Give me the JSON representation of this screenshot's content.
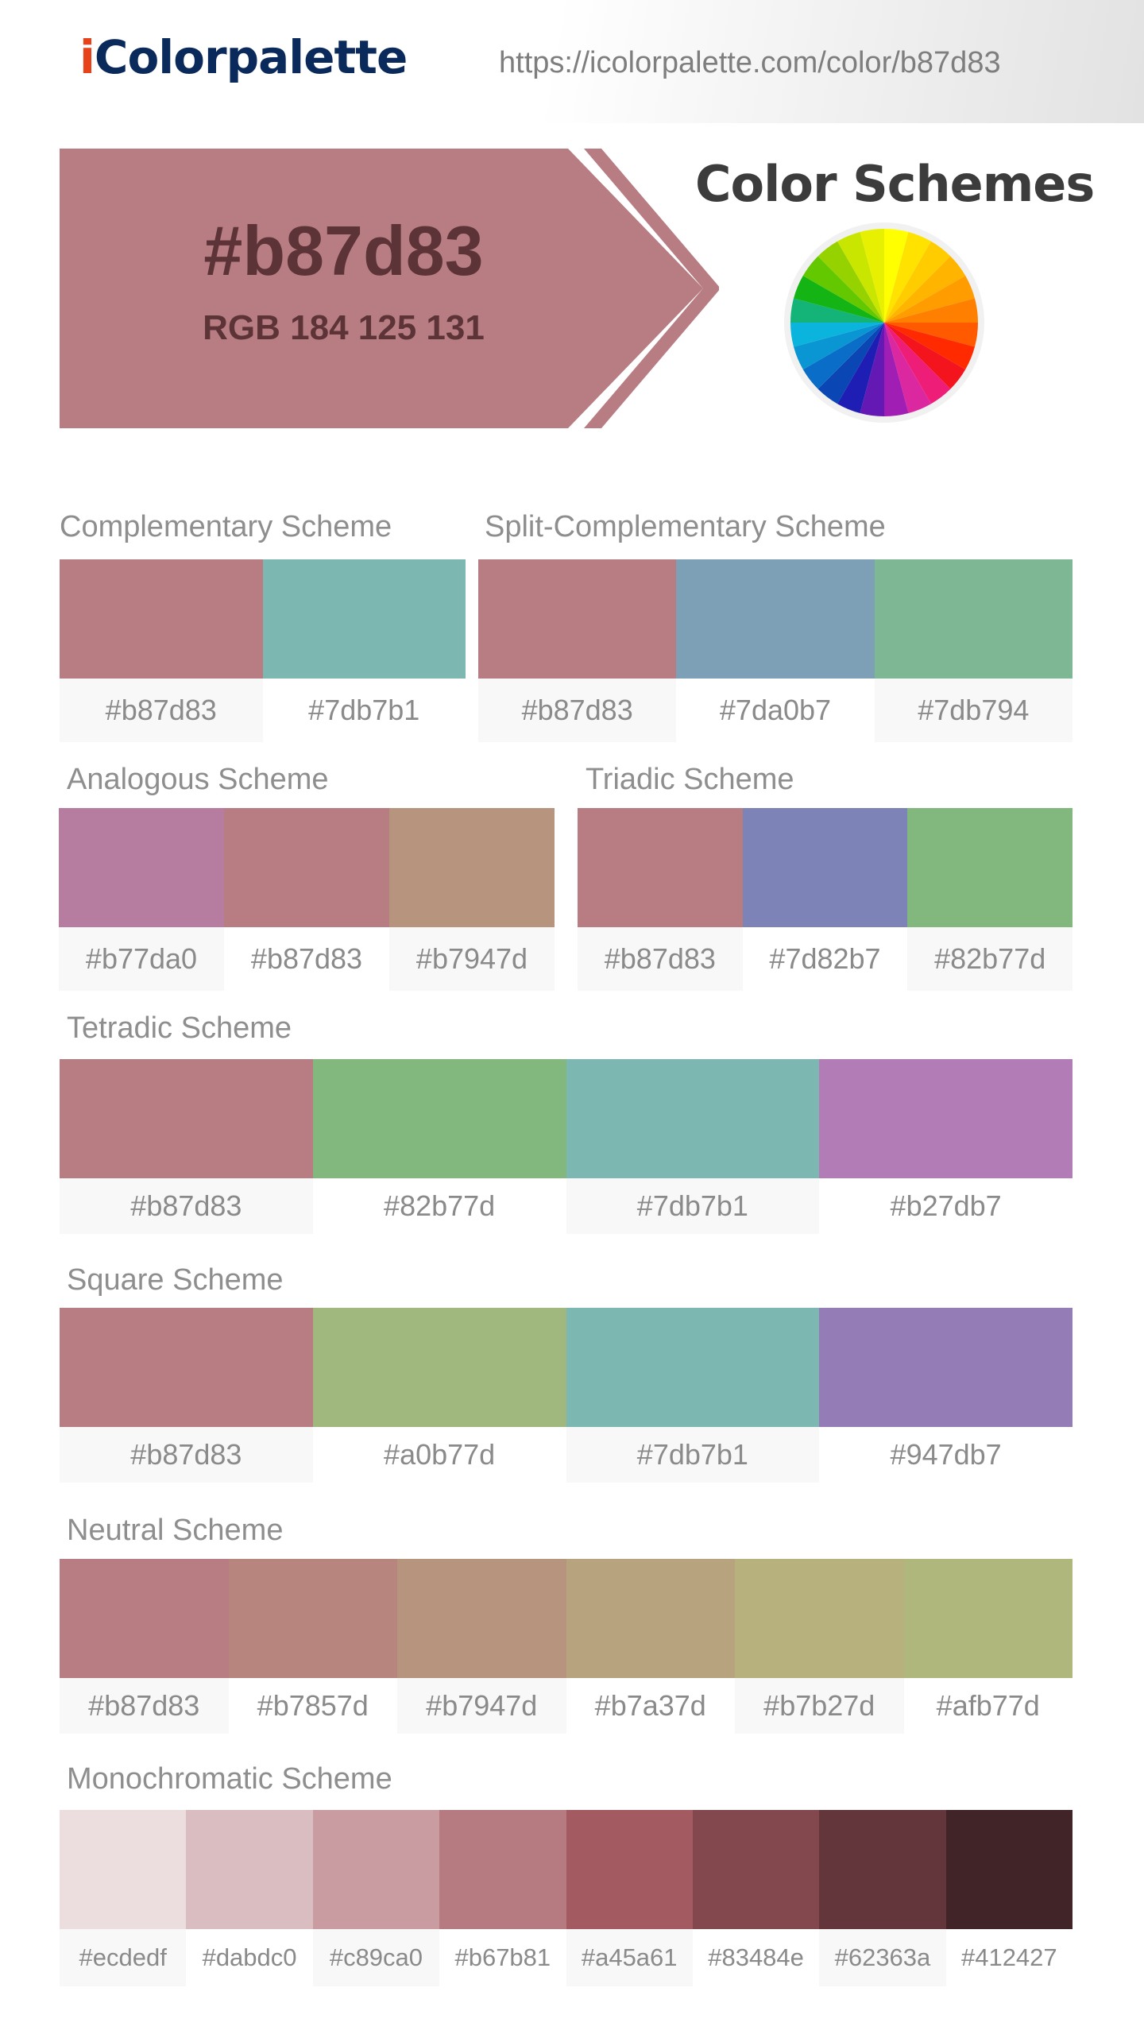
{
  "header": {
    "logo_prefix": "i",
    "logo_rest": "Colorpalette",
    "url": "https://icolorpalette.com/color/b87d83"
  },
  "hero": {
    "hex": "#b87d83",
    "rgb": "RGB 184 125 131",
    "title": "Color Schemes",
    "color": "#b87d83",
    "text_color": "#5c3438"
  },
  "schemes": {
    "complementary": {
      "title": "Complementary Scheme",
      "colors": [
        "#b87d83",
        "#7db7b1"
      ],
      "labels": [
        "#b87d83",
        "#7db7b1"
      ]
    },
    "split_complementary": {
      "title": "Split-Complementary Scheme",
      "colors": [
        "#b87d83",
        "#7da0b7",
        "#7db794"
      ],
      "labels": [
        "#b87d83",
        "#7da0b7",
        "#7db794"
      ]
    },
    "analogous": {
      "title": "Analogous Scheme",
      "colors": [
        "#b77da0",
        "#b87d83",
        "#b7947d"
      ],
      "labels": [
        "#b77da0",
        "#b87d83",
        "#b7947d"
      ]
    },
    "triadic": {
      "title": "Triadic Scheme",
      "colors": [
        "#b87d83",
        "#7d82b7",
        "#82b77d"
      ],
      "labels": [
        "#b87d83",
        "#7d82b7",
        "#82b77d"
      ]
    },
    "tetradic": {
      "title": "Tetradic Scheme",
      "colors": [
        "#b87d83",
        "#82b77d",
        "#7db7b1",
        "#b27db7"
      ],
      "labels": [
        "#b87d83",
        "#82b77d",
        "#7db7b1",
        "#b27db7"
      ]
    },
    "square": {
      "title": "Square Scheme",
      "colors": [
        "#b87d83",
        "#a0b77d",
        "#7db7b1",
        "#947db7"
      ],
      "labels": [
        "#b87d83",
        "#a0b77d",
        "#7db7b1",
        "#947db7"
      ]
    },
    "neutral": {
      "title": "Neutral Scheme",
      "colors": [
        "#b87d83",
        "#b7857d",
        "#b7947d",
        "#b7a37d",
        "#b7b27d",
        "#afb77d"
      ],
      "labels": [
        "#b87d83",
        "#b7857d",
        "#b7947d",
        "#b7a37d",
        "#b7b27d",
        "#afb77d"
      ]
    },
    "monochromatic": {
      "title": "Monochromatic Scheme",
      "colors": [
        "#ecdedf",
        "#dabdc0",
        "#c89ca0",
        "#b67b81",
        "#a45a61",
        "#83484e",
        "#62363a",
        "#412427"
      ],
      "labels": [
        "#ecdedf",
        "#dabdc0",
        "#c89ca0",
        "#b67b81",
        "#a45a61",
        "#83484e",
        "#62363a",
        "#412427"
      ]
    }
  }
}
